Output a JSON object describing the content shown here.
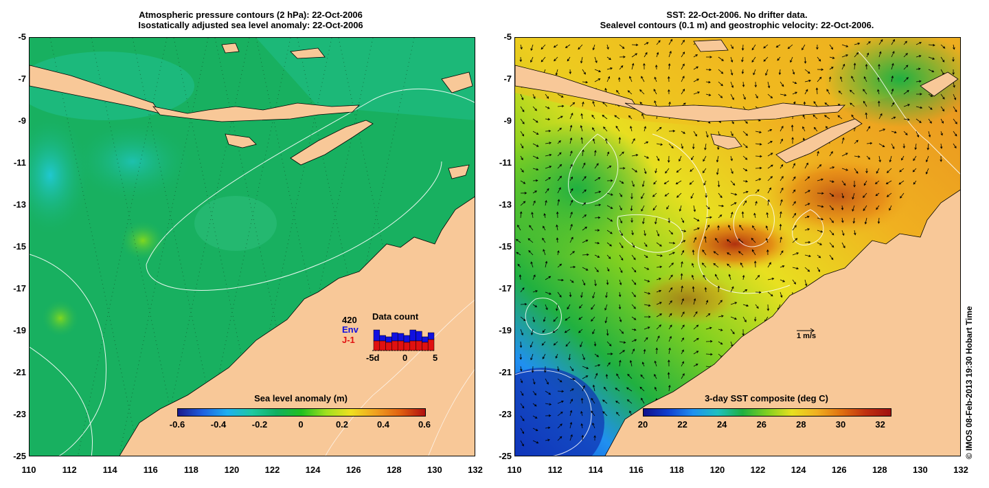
{
  "left_panel": {
    "title_line1": "Atmospheric pressure contours (2 hPa): 22-Oct-2006",
    "title_line2": "Isostatically adjusted sea level anomaly: 22-Oct-2006",
    "colorbar": {
      "title": "Sea level anomaly (m)",
      "ticks": [
        "-0.6",
        "-0.4",
        "-0.2",
        "0",
        "0.2",
        "0.4",
        "0.6"
      ],
      "min": -0.6,
      "max": 0.6,
      "colors": [
        "#1a1a8c",
        "#2060e0",
        "#20b0f0",
        "#20c8a0",
        "#10b060",
        "#20c020",
        "#a0e020",
        "#f0e020",
        "#f0a020",
        "#e06010",
        "#b01010"
      ]
    },
    "data_count": {
      "title": "Data count",
      "count": "420",
      "env_label": "Env",
      "j1_label": "J-1",
      "x_ticks": [
        "-5d",
        "0",
        "5"
      ],
      "env_color": "#1010e0",
      "j1_color": "#e01010",
      "env_values": [
        30,
        22,
        20,
        26,
        25,
        22,
        30,
        28,
        20,
        26
      ],
      "j1_values": [
        14,
        14,
        12,
        14,
        14,
        12,
        14,
        14,
        12,
        16
      ]
    }
  },
  "right_panel": {
    "title_line1": "SST: 22-Oct-2006. No drifter data.",
    "title_line2": "Sealevel contours (0.1 m) and geostrophic velocity: 22-Oct-2006.",
    "velocity_scale_label": "1 m/s",
    "colorbar": {
      "title": "3-day SST composite (deg C)",
      "ticks": [
        "20",
        "22",
        "24",
        "26",
        "28",
        "30",
        "32"
      ],
      "min": 20,
      "max": 32.5,
      "colors": [
        "#10108c",
        "#1040d0",
        "#2090f0",
        "#20c0c0",
        "#20b040",
        "#80d020",
        "#e8e020",
        "#f0b020",
        "#e07010",
        "#c03010",
        "#a01010"
      ]
    }
  },
  "axes": {
    "lat_ticks": [
      "-5",
      "-7",
      "-9",
      "-11",
      "-13",
      "-15",
      "-17",
      "-19",
      "-21",
      "-23",
      "-25"
    ],
    "lon_ticks": [
      "110",
      "112",
      "114",
      "116",
      "118",
      "120",
      "122",
      "124",
      "126",
      "128",
      "130",
      "132"
    ],
    "lat_range": [
      -25,
      -5
    ],
    "lon_range": [
      110,
      132
    ]
  },
  "colors": {
    "land": "#f8c898",
    "sea_left": "#18b060",
    "sea_right_warm": "#f0b020"
  },
  "credit": "© IMOS 08-Feb-2013 19:30 Hobart Time"
}
